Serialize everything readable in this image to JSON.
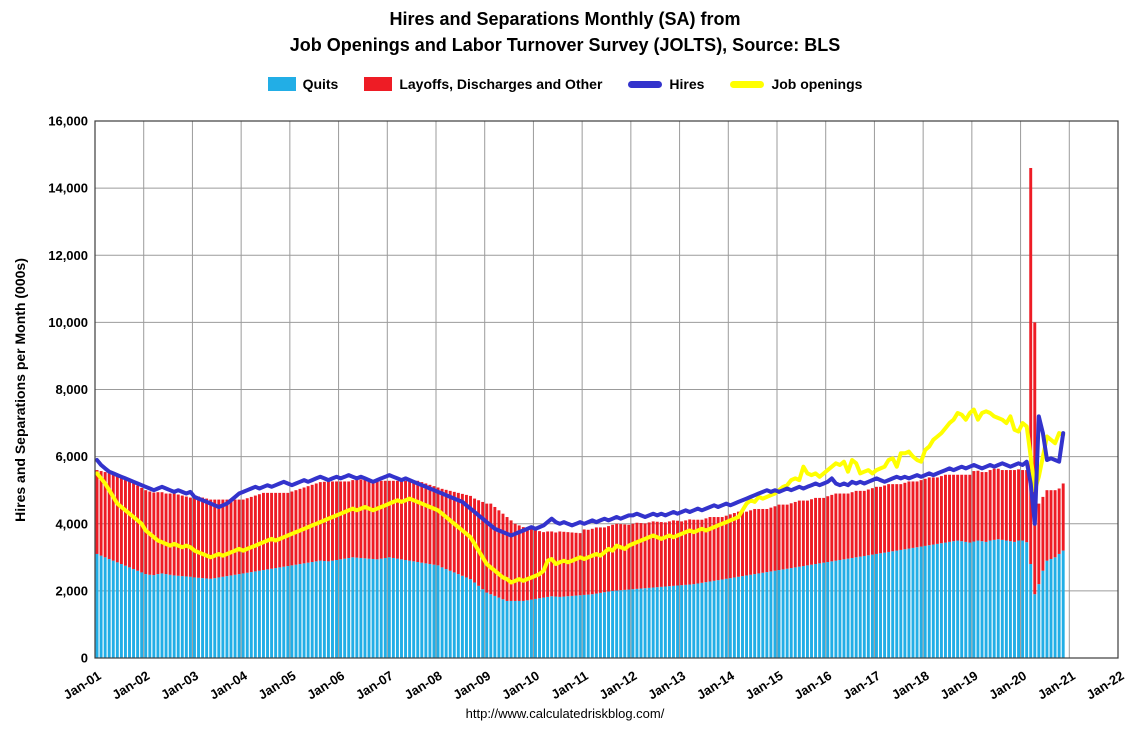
{
  "title": {
    "line1": "Hires and Separations Monthly (SA) from",
    "line2": "Job Openings and Labor Turnover Survey (JOLTS), Source: BLS"
  },
  "legend": [
    {
      "label": "Quits",
      "color": "#22aee6",
      "type": "bar"
    },
    {
      "label": "Layoffs, Discharges and Other",
      "color": "#ee1c25",
      "type": "bar"
    },
    {
      "label": "Hires",
      "color": "#3333cc",
      "type": "line"
    },
    {
      "label": "Job openings",
      "color": "#ffff00",
      "type": "line"
    }
  ],
  "y_axis": {
    "label": "Hires and Separations per Month (000s)",
    "min": 0,
    "max": 16000,
    "step": 2000
  },
  "x_axis": {
    "tick_labels": [
      "Jan-01",
      "Jan-02",
      "Jan-03",
      "Jan-04",
      "Jan-05",
      "Jan-06",
      "Jan-07",
      "Jan-08",
      "Jan-09",
      "Jan-10",
      "Jan-11",
      "Jan-12",
      "Jan-13",
      "Jan-14",
      "Jan-15",
      "Jan-16",
      "Jan-17",
      "Jan-18",
      "Jan-19",
      "Jan-20",
      "Jan-21",
      "Jan-22"
    ],
    "months": {
      "start": "Jan-01",
      "end": "Nov-20",
      "count": 239,
      "axis_end": "Jan-22"
    }
  },
  "footer": {
    "url": "http://www.calculatedriskblog.com/"
  },
  "style": {
    "grid_color": "#9b9b9b",
    "border_color": "#3c3c3c"
  },
  "chart_data": {
    "type": "combo",
    "subtype": "stacked-bar-with-lines",
    "x": {
      "start": "2001-01",
      "interval": "monthly",
      "count": 239,
      "plot_extends_to": "2022-01"
    },
    "ylim": [
      0,
      16000
    ],
    "grid": true,
    "legend_position": "top",
    "bar_series": [
      {
        "name": "Quits",
        "color": "#22aee6",
        "stack_order": 1,
        "values": [
          3100,
          3050,
          3000,
          2950,
          2900,
          2850,
          2800,
          2750,
          2700,
          2650,
          2600,
          2550,
          2500,
          2480,
          2470,
          2500,
          2520,
          2500,
          2480,
          2460,
          2450,
          2440,
          2430,
          2420,
          2400,
          2390,
          2380,
          2370,
          2360,
          2380,
          2400,
          2420,
          2440,
          2460,
          2480,
          2500,
          2520,
          2540,
          2560,
          2580,
          2600,
          2620,
          2640,
          2660,
          2680,
          2700,
          2720,
          2740,
          2760,
          2780,
          2800,
          2820,
          2840,
          2860,
          2880,
          2900,
          2890,
          2880,
          2900,
          2920,
          2940,
          2960,
          2980,
          3000,
          2990,
          2980,
          2970,
          2960,
          2950,
          2940,
          2960,
          2980,
          3000,
          2980,
          2960,
          2940,
          2920,
          2900,
          2880,
          2860,
          2840,
          2820,
          2800,
          2780,
          2760,
          2700,
          2650,
          2600,
          2550,
          2500,
          2450,
          2400,
          2350,
          2250,
          2150,
          2050,
          1950,
          1900,
          1850,
          1800,
          1750,
          1700,
          1700,
          1700,
          1700,
          1700,
          1720,
          1740,
          1760,
          1780,
          1800,
          1820,
          1840,
          1830,
          1820,
          1830,
          1840,
          1850,
          1860,
          1870,
          1880,
          1890,
          1900,
          1920,
          1940,
          1960,
          1980,
          2000,
          2010,
          2020,
          2030,
          2040,
          2050,
          2060,
          2070,
          2080,
          2090,
          2100,
          2110,
          2120,
          2130,
          2140,
          2150,
          2160,
          2170,
          2180,
          2190,
          2200,
          2220,
          2240,
          2260,
          2280,
          2300,
          2320,
          2340,
          2360,
          2380,
          2400,
          2420,
          2440,
          2460,
          2480,
          2500,
          2520,
          2540,
          2560,
          2580,
          2600,
          2620,
          2640,
          2660,
          2680,
          2700,
          2720,
          2740,
          2760,
          2780,
          2800,
          2820,
          2840,
          2860,
          2880,
          2900,
          2920,
          2940,
          2960,
          2980,
          3000,
          3020,
          3040,
          3060,
          3080,
          3100,
          3120,
          3140,
          3160,
          3180,
          3200,
          3220,
          3240,
          3260,
          3280,
          3300,
          3320,
          3340,
          3360,
          3380,
          3400,
          3420,
          3440,
          3460,
          3480,
          3500,
          3480,
          3460,
          3440,
          3470,
          3500,
          3480,
          3460,
          3500,
          3520,
          3540,
          3520,
          3500,
          3480,
          3460,
          3500,
          3500,
          3450,
          2800,
          1900,
          2200,
          2600,
          2900,
          2950,
          3000,
          3100,
          3200
        ]
      },
      {
        "name": "Layoffs, Discharges and Other",
        "color": "#ee1c25",
        "stack_order": 2,
        "values": [
          2500,
          2520,
          2540,
          2560,
          2580,
          2600,
          2620,
          2600,
          2580,
          2560,
          2540,
          2520,
          2500,
          2480,
          2460,
          2440,
          2420,
          2400,
          2420,
          2440,
          2420,
          2400,
          2380,
          2360,
          2400,
          2420,
          2400,
          2380,
          2360,
          2340,
          2320,
          2300,
          2280,
          2260,
          2240,
          2220,
          2200,
          2220,
          2240,
          2260,
          2280,
          2300,
          2280,
          2260,
          2240,
          2220,
          2200,
          2180,
          2200,
          2220,
          2240,
          2260,
          2280,
          2300,
          2320,
          2340,
          2360,
          2380,
          2360,
          2340,
          2320,
          2300,
          2280,
          2300,
          2320,
          2340,
          2360,
          2380,
          2360,
          2340,
          2320,
          2300,
          2280,
          2300,
          2320,
          2340,
          2360,
          2380,
          2400,
          2420,
          2400,
          2380,
          2360,
          2340,
          2320,
          2340,
          2360,
          2380,
          2400,
          2420,
          2440,
          2460,
          2480,
          2500,
          2550,
          2600,
          2650,
          2700,
          2650,
          2600,
          2550,
          2500,
          2400,
          2300,
          2250,
          2200,
          2150,
          2100,
          2050,
          2000,
          1950,
          1950,
          1930,
          1910,
          1950,
          1930,
          1910,
          1890,
          1870,
          1850,
          1950,
          1930,
          1950,
          1970,
          1950,
          1930,
          1950,
          1970,
          1990,
          1970,
          1950,
          1930,
          1950,
          1970,
          1950,
          1930,
          1950,
          1970,
          1950,
          1930,
          1910,
          1930,
          1950,
          1930,
          1900,
          1920,
          1940,
          1920,
          1900,
          1880,
          1900,
          1920,
          1900,
          1880,
          1860,
          1880,
          1900,
          1920,
          1940,
          1920,
          1900,
          1920,
          1940,
          1920,
          1900,
          1880,
          1900,
          1920,
          1950,
          1930,
          1910,
          1930,
          1950,
          1970,
          1950,
          1930,
          1950,
          1970,
          1950,
          1930,
          1960,
          1980,
          2000,
          1980,
          1960,
          1940,
          1960,
          1980,
          1960,
          1940,
          1960,
          1980,
          2000,
          1980,
          2000,
          2020,
          2000,
          1980,
          1960,
          1980,
          2000,
          1980,
          1960,
          1980,
          2000,
          2020,
          2000,
          1980,
          2000,
          2020,
          2000,
          1980,
          1960,
          1980,
          2000,
          2020,
          2100,
          2080,
          2060,
          2080,
          2100,
          2120,
          2100,
          2080,
          2100,
          2120,
          2140,
          2120,
          2100,
          2150,
          11800,
          8100,
          2400,
          2200,
          2100,
          2050,
          2000,
          1950,
          2000
        ]
      }
    ],
    "line_series": [
      {
        "name": "Job openings",
        "color": "#ffff00",
        "values": [
          5500,
          5350,
          5200,
          5000,
          4800,
          4600,
          4500,
          4400,
          4300,
          4200,
          4100,
          4000,
          3800,
          3700,
          3600,
          3500,
          3450,
          3400,
          3350,
          3400,
          3350,
          3300,
          3350,
          3300,
          3200,
          3150,
          3100,
          3050,
          3000,
          3050,
          3100,
          3050,
          3100,
          3150,
          3200,
          3250,
          3200,
          3250,
          3300,
          3350,
          3400,
          3450,
          3500,
          3550,
          3500,
          3550,
          3600,
          3650,
          3700,
          3750,
          3800,
          3850,
          3900,
          3950,
          4000,
          4050,
          4100,
          4150,
          4200,
          4250,
          4300,
          4350,
          4400,
          4450,
          4400,
          4450,
          4500,
          4450,
          4400,
          4450,
          4500,
          4550,
          4600,
          4650,
          4700,
          4650,
          4700,
          4750,
          4700,
          4650,
          4600,
          4550,
          4500,
          4450,
          4400,
          4300,
          4200,
          4100,
          4000,
          3900,
          3800,
          3700,
          3600,
          3400,
          3200,
          3000,
          2800,
          2700,
          2600,
          2500,
          2400,
          2350,
          2250,
          2300,
          2350,
          2300,
          2350,
          2400,
          2450,
          2500,
          2600,
          2900,
          2950,
          2800,
          2850,
          2900,
          2850,
          2900,
          2950,
          3000,
          2950,
          3000,
          3050,
          3100,
          3050,
          3150,
          3250,
          3200,
          3350,
          3300,
          3250,
          3350,
          3400,
          3450,
          3500,
          3550,
          3600,
          3650,
          3600,
          3550,
          3600,
          3650,
          3600,
          3650,
          3700,
          3750,
          3800,
          3750,
          3800,
          3850,
          3800,
          3850,
          3900,
          3950,
          4000,
          4050,
          4100,
          4150,
          4200,
          4400,
          4600,
          4700,
          4650,
          4800,
          4750,
          4800,
          4850,
          4900,
          5000,
          5100,
          5150,
          5300,
          5350,
          5300,
          5700,
          5500,
          5450,
          5500,
          5400,
          5500,
          5600,
          5700,
          5800,
          5750,
          5850,
          5550,
          5900,
          5800,
          5500,
          5550,
          5600,
          5500,
          5600,
          5650,
          5700,
          5900,
          5950,
          5700,
          6100,
          6100,
          6150,
          6000,
          5900,
          5850,
          6200,
          6300,
          6500,
          6600,
          6700,
          6850,
          7000,
          7100,
          7300,
          7250,
          7100,
          7300,
          7400,
          7100,
          7300,
          7350,
          7300,
          7200,
          7150,
          7100,
          7000,
          7200,
          6800,
          6750,
          7000,
          6900,
          6000,
          5000,
          5400,
          6000,
          6600,
          6500,
          6400,
          6700,
          6650
        ]
      },
      {
        "name": "Hires",
        "color": "#3333cc",
        "values": [
          5900,
          5750,
          5650,
          5550,
          5500,
          5450,
          5400,
          5350,
          5300,
          5250,
          5200,
          5150,
          5100,
          5050,
          5000,
          5050,
          5100,
          5050,
          5000,
          4950,
          5000,
          4950,
          4900,
          4950,
          4800,
          4750,
          4700,
          4650,
          4600,
          4550,
          4500,
          4550,
          4600,
          4700,
          4800,
          4900,
          4950,
          5000,
          5050,
          5100,
          5050,
          5100,
          5150,
          5100,
          5150,
          5200,
          5250,
          5200,
          5150,
          5200,
          5250,
          5300,
          5250,
          5300,
          5350,
          5400,
          5350,
          5300,
          5350,
          5400,
          5350,
          5400,
          5450,
          5400,
          5350,
          5400,
          5350,
          5300,
          5250,
          5300,
          5350,
          5400,
          5450,
          5400,
          5350,
          5300,
          5350,
          5300,
          5250,
          5200,
          5150,
          5100,
          5050,
          5000,
          4950,
          4900,
          4850,
          4800,
          4750,
          4700,
          4650,
          4550,
          4450,
          4350,
          4250,
          4150,
          4050,
          3950,
          3850,
          3800,
          3750,
          3700,
          3650,
          3700,
          3750,
          3800,
          3850,
          3900,
          3850,
          3900,
          3950,
          4050,
          4150,
          4050,
          4000,
          4050,
          4000,
          3950,
          4000,
          4050,
          4000,
          4050,
          4100,
          4050,
          4100,
          4150,
          4100,
          4150,
          4200,
          4150,
          4200,
          4250,
          4250,
          4300,
          4250,
          4200,
          4250,
          4300,
          4250,
          4300,
          4250,
          4300,
          4350,
          4300,
          4350,
          4400,
          4350,
          4400,
          4450,
          4400,
          4450,
          4500,
          4550,
          4500,
          4550,
          4600,
          4550,
          4600,
          4650,
          4700,
          4750,
          4800,
          4850,
          4900,
          4950,
          5000,
          4950,
          5000,
          4950,
          5000,
          5050,
          5000,
          5050,
          5100,
          5050,
          5100,
          5150,
          5200,
          5150,
          5200,
          5250,
          5350,
          5200,
          5150,
          5200,
          5150,
          5250,
          5200,
          5250,
          5200,
          5250,
          5300,
          5350,
          5300,
          5250,
          5300,
          5350,
          5400,
          5350,
          5400,
          5350,
          5400,
          5450,
          5400,
          5450,
          5500,
          5450,
          5500,
          5550,
          5600,
          5650,
          5600,
          5650,
          5700,
          5650,
          5700,
          5750,
          5700,
          5650,
          5700,
          5750,
          5700,
          5750,
          5800,
          5750,
          5700,
          5750,
          5800,
          5750,
          5850,
          5200,
          4000,
          7200,
          6700,
          5900,
          5950,
          5900,
          5850,
          6700
        ]
      }
    ]
  }
}
